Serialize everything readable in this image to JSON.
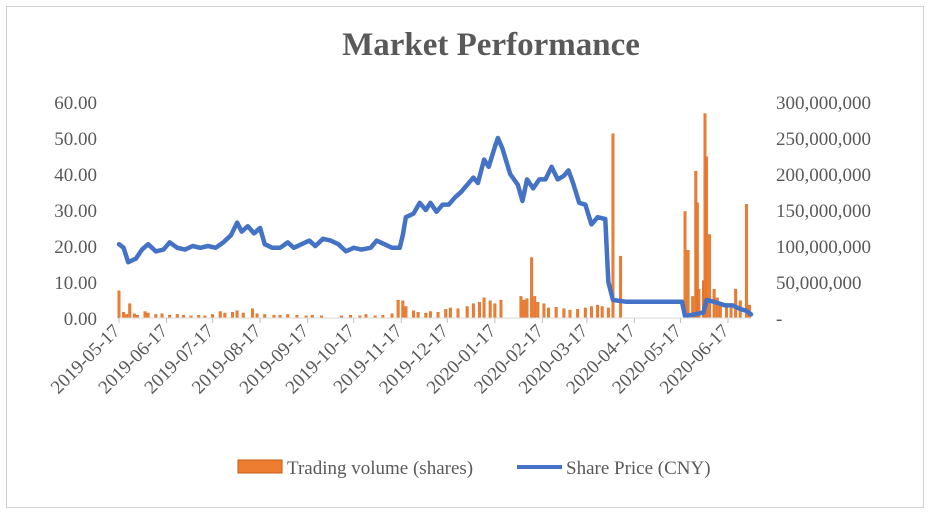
{
  "chart_data": {
    "type": "bar+line",
    "title": "Market Performance",
    "x_tick_labels": [
      "2019-05-17",
      "2019-06-17",
      "2019-07-17",
      "2019-08-17",
      "2019-09-17",
      "2019-10-17",
      "2019-11-17",
      "2019-12-17",
      "2020-01-17",
      "2020-02-17",
      "2020-03-17",
      "2020-04-17",
      "2020-05-17",
      "2020-06-17"
    ],
    "x_range": [
      "2019-05-17",
      "2020-07-02"
    ],
    "y_left": {
      "range": [
        0,
        60
      ],
      "tick_labels": [
        "0.00",
        "10.00",
        "20.00",
        "30.00",
        "40.00",
        "50.00",
        "60.00"
      ]
    },
    "y_right": {
      "range": [
        0,
        300000000
      ],
      "tick_labels": [
        "-",
        "50,000,000",
        "100,000,000",
        "150,000,000",
        "200,000,000",
        "250,000,000",
        "300,000,000"
      ]
    },
    "grid": false,
    "legend_position": "bottom",
    "colors": {
      "volume": "#ED7D31",
      "price": "#4472C4",
      "text": "#595959"
    },
    "series": [
      {
        "name": "Trading volume (shares)",
        "axis": "right",
        "style": "bar",
        "points": [
          [
            "2019-05-17",
            38000000
          ],
          [
            "2019-05-20",
            8000000
          ],
          [
            "2019-05-22",
            5000000
          ],
          [
            "2019-05-24",
            20000000
          ],
          [
            "2019-05-27",
            6000000
          ],
          [
            "2019-05-29",
            4000000
          ],
          [
            "2019-06-03",
            9000000
          ],
          [
            "2019-06-05",
            7000000
          ],
          [
            "2019-06-10",
            5000000
          ],
          [
            "2019-06-14",
            6000000
          ],
          [
            "2019-06-19",
            4000000
          ],
          [
            "2019-06-24",
            5000000
          ],
          [
            "2019-06-28",
            4000000
          ],
          [
            "2019-07-03",
            3000000
          ],
          [
            "2019-07-08",
            4000000
          ],
          [
            "2019-07-12",
            3000000
          ],
          [
            "2019-07-17",
            5000000
          ],
          [
            "2019-07-22",
            9000000
          ],
          [
            "2019-07-25",
            7000000
          ],
          [
            "2019-07-30",
            8000000
          ],
          [
            "2019-08-02",
            10000000
          ],
          [
            "2019-08-06",
            7000000
          ],
          [
            "2019-08-12",
            13000000
          ],
          [
            "2019-08-15",
            6000000
          ],
          [
            "2019-08-20",
            5000000
          ],
          [
            "2019-08-26",
            4000000
          ],
          [
            "2019-08-30",
            4000000
          ],
          [
            "2019-09-04",
            5000000
          ],
          [
            "2019-09-10",
            4000000
          ],
          [
            "2019-09-16",
            3000000
          ],
          [
            "2019-09-20",
            4000000
          ],
          [
            "2019-09-26",
            3000000
          ],
          [
            "2019-10-09",
            3000000
          ],
          [
            "2019-10-15",
            4000000
          ],
          [
            "2019-10-21",
            3000000
          ],
          [
            "2019-10-25",
            5000000
          ],
          [
            "2019-10-31",
            3000000
          ],
          [
            "2019-11-05",
            4000000
          ],
          [
            "2019-11-11",
            6000000
          ],
          [
            "2019-11-15",
            25000000
          ],
          [
            "2019-11-18",
            24000000
          ],
          [
            "2019-11-20",
            16000000
          ],
          [
            "2019-11-25",
            10000000
          ],
          [
            "2019-11-28",
            8000000
          ],
          [
            "2019-12-03",
            7000000
          ],
          [
            "2019-12-06",
            9000000
          ],
          [
            "2019-12-11",
            8000000
          ],
          [
            "2019-12-16",
            12000000
          ],
          [
            "2019-12-19",
            14000000
          ],
          [
            "2019-12-24",
            13000000
          ],
          [
            "2019-12-30",
            16000000
          ],
          [
            "2020-01-03",
            20000000
          ],
          [
            "2020-01-07",
            22000000
          ],
          [
            "2020-01-10",
            28000000
          ],
          [
            "2020-01-14",
            24000000
          ],
          [
            "2020-01-17",
            20000000
          ],
          [
            "2020-01-21",
            25000000
          ],
          [
            "2020-02-03",
            30000000
          ],
          [
            "2020-02-05",
            25000000
          ],
          [
            "2020-02-07",
            27000000
          ],
          [
            "2020-02-10",
            84000000
          ],
          [
            "2020-02-12",
            30000000
          ],
          [
            "2020-02-14",
            22000000
          ],
          [
            "2020-02-18",
            20000000
          ],
          [
            "2020-02-21",
            14000000
          ],
          [
            "2020-02-26",
            15000000
          ],
          [
            "2020-03-02",
            13000000
          ],
          [
            "2020-03-06",
            11000000
          ],
          [
            "2020-03-11",
            12000000
          ],
          [
            "2020-03-16",
            14000000
          ],
          [
            "2020-03-20",
            16000000
          ],
          [
            "2020-03-24",
            18000000
          ],
          [
            "2020-03-27",
            16000000
          ],
          [
            "2020-03-31",
            14000000
          ],
          [
            "2020-04-03",
            256000000
          ],
          [
            "2020-04-08",
            86000000
          ],
          [
            "2020-05-20",
            148000000
          ],
          [
            "2020-05-22",
            94000000
          ],
          [
            "2020-05-25",
            30000000
          ],
          [
            "2020-05-27",
            204000000
          ],
          [
            "2020-05-28",
            160000000
          ],
          [
            "2020-05-29",
            40000000
          ],
          [
            "2020-06-01",
            52000000
          ],
          [
            "2020-06-02",
            284000000
          ],
          [
            "2020-06-03",
            224000000
          ],
          [
            "2020-06-05",
            116000000
          ],
          [
            "2020-06-08",
            40000000
          ],
          [
            "2020-06-10",
            28000000
          ],
          [
            "2020-06-12",
            22000000
          ],
          [
            "2020-06-16",
            18000000
          ],
          [
            "2020-06-19",
            14000000
          ],
          [
            "2020-06-22",
            40000000
          ],
          [
            "2020-06-25",
            24000000
          ],
          [
            "2020-06-29",
            158000000
          ],
          [
            "2020-07-01",
            18000000
          ]
        ]
      },
      {
        "name": "Share Price (CNY)",
        "axis": "left",
        "style": "line",
        "points": [
          [
            "2019-05-17",
            20.5
          ],
          [
            "2019-05-20",
            19.5
          ],
          [
            "2019-05-23",
            15.5
          ],
          [
            "2019-05-28",
            16.5
          ],
          [
            "2019-06-01",
            19.0
          ],
          [
            "2019-06-05",
            20.5
          ],
          [
            "2019-06-10",
            18.5
          ],
          [
            "2019-06-15",
            19.0
          ],
          [
            "2019-06-19",
            21.0
          ],
          [
            "2019-06-24",
            19.5
          ],
          [
            "2019-06-29",
            19.0
          ],
          [
            "2019-07-04",
            20.0
          ],
          [
            "2019-07-09",
            19.5
          ],
          [
            "2019-07-14",
            20.0
          ],
          [
            "2019-07-19",
            19.5
          ],
          [
            "2019-07-24",
            21.0
          ],
          [
            "2019-07-29",
            23.0
          ],
          [
            "2019-08-02",
            26.5
          ],
          [
            "2019-08-05",
            24.0
          ],
          [
            "2019-08-09",
            25.5
          ],
          [
            "2019-08-13",
            23.5
          ],
          [
            "2019-08-17",
            25.0
          ],
          [
            "2019-08-20",
            20.5
          ],
          [
            "2019-08-25",
            19.5
          ],
          [
            "2019-08-30",
            19.5
          ],
          [
            "2019-09-04",
            21.0
          ],
          [
            "2019-09-08",
            19.5
          ],
          [
            "2019-09-13",
            20.5
          ],
          [
            "2019-09-18",
            21.5
          ],
          [
            "2019-09-22",
            20.0
          ],
          [
            "2019-09-27",
            22.0
          ],
          [
            "2019-10-02",
            21.5
          ],
          [
            "2019-10-07",
            20.5
          ],
          [
            "2019-10-12",
            18.5
          ],
          [
            "2019-10-17",
            19.5
          ],
          [
            "2019-10-22",
            19.0
          ],
          [
            "2019-10-28",
            19.5
          ],
          [
            "2019-11-01",
            21.5
          ],
          [
            "2019-11-06",
            20.5
          ],
          [
            "2019-11-11",
            19.5
          ],
          [
            "2019-11-16",
            19.5
          ],
          [
            "2019-11-18",
            23.0
          ],
          [
            "2019-11-20",
            28.0
          ],
          [
            "2019-11-25",
            29.0
          ],
          [
            "2019-11-29",
            32.0
          ],
          [
            "2019-12-03",
            30.0
          ],
          [
            "2019-12-06",
            32.0
          ],
          [
            "2019-12-10",
            29.5
          ],
          [
            "2019-12-14",
            31.5
          ],
          [
            "2019-12-18",
            31.5
          ],
          [
            "2019-12-22",
            33.5
          ],
          [
            "2019-12-26",
            35.0
          ],
          [
            "2019-12-30",
            37.0
          ],
          [
            "2020-01-03",
            39.0
          ],
          [
            "2020-01-06",
            37.5
          ],
          [
            "2020-01-10",
            44.0
          ],
          [
            "2020-01-13",
            42.0
          ],
          [
            "2020-01-17",
            47.5
          ],
          [
            "2020-01-19",
            50.0
          ],
          [
            "2020-01-22",
            47.0
          ],
          [
            "2020-01-27",
            40.0
          ],
          [
            "2020-02-01",
            37.0
          ],
          [
            "2020-02-04",
            32.5
          ],
          [
            "2020-02-07",
            38.5
          ],
          [
            "2020-02-11",
            36.0
          ],
          [
            "2020-02-15",
            38.5
          ],
          [
            "2020-02-19",
            38.5
          ],
          [
            "2020-02-23",
            42.0
          ],
          [
            "2020-02-27",
            38.5
          ],
          [
            "2020-03-02",
            39.5
          ],
          [
            "2020-03-05",
            41.0
          ],
          [
            "2020-03-08",
            37.5
          ],
          [
            "2020-03-12",
            32.0
          ],
          [
            "2020-03-16",
            31.5
          ],
          [
            "2020-03-20",
            26.0
          ],
          [
            "2020-03-24",
            28.0
          ],
          [
            "2020-03-29",
            27.5
          ],
          [
            "2020-03-31",
            10.0
          ],
          [
            "2020-04-03",
            5.0
          ],
          [
            "2020-04-12",
            4.5
          ],
          [
            "2020-05-18",
            4.5
          ],
          [
            "2020-05-20",
            0.5
          ],
          [
            "2020-05-26",
            1.0
          ],
          [
            "2020-06-01",
            1.5
          ],
          [
            "2020-06-03",
            5.0
          ],
          [
            "2020-06-08",
            4.5
          ],
          [
            "2020-06-15",
            3.5
          ],
          [
            "2020-06-20",
            3.5
          ],
          [
            "2020-06-25",
            2.5
          ],
          [
            "2020-06-29",
            2.0
          ],
          [
            "2020-07-02",
            1.0
          ]
        ]
      }
    ]
  }
}
